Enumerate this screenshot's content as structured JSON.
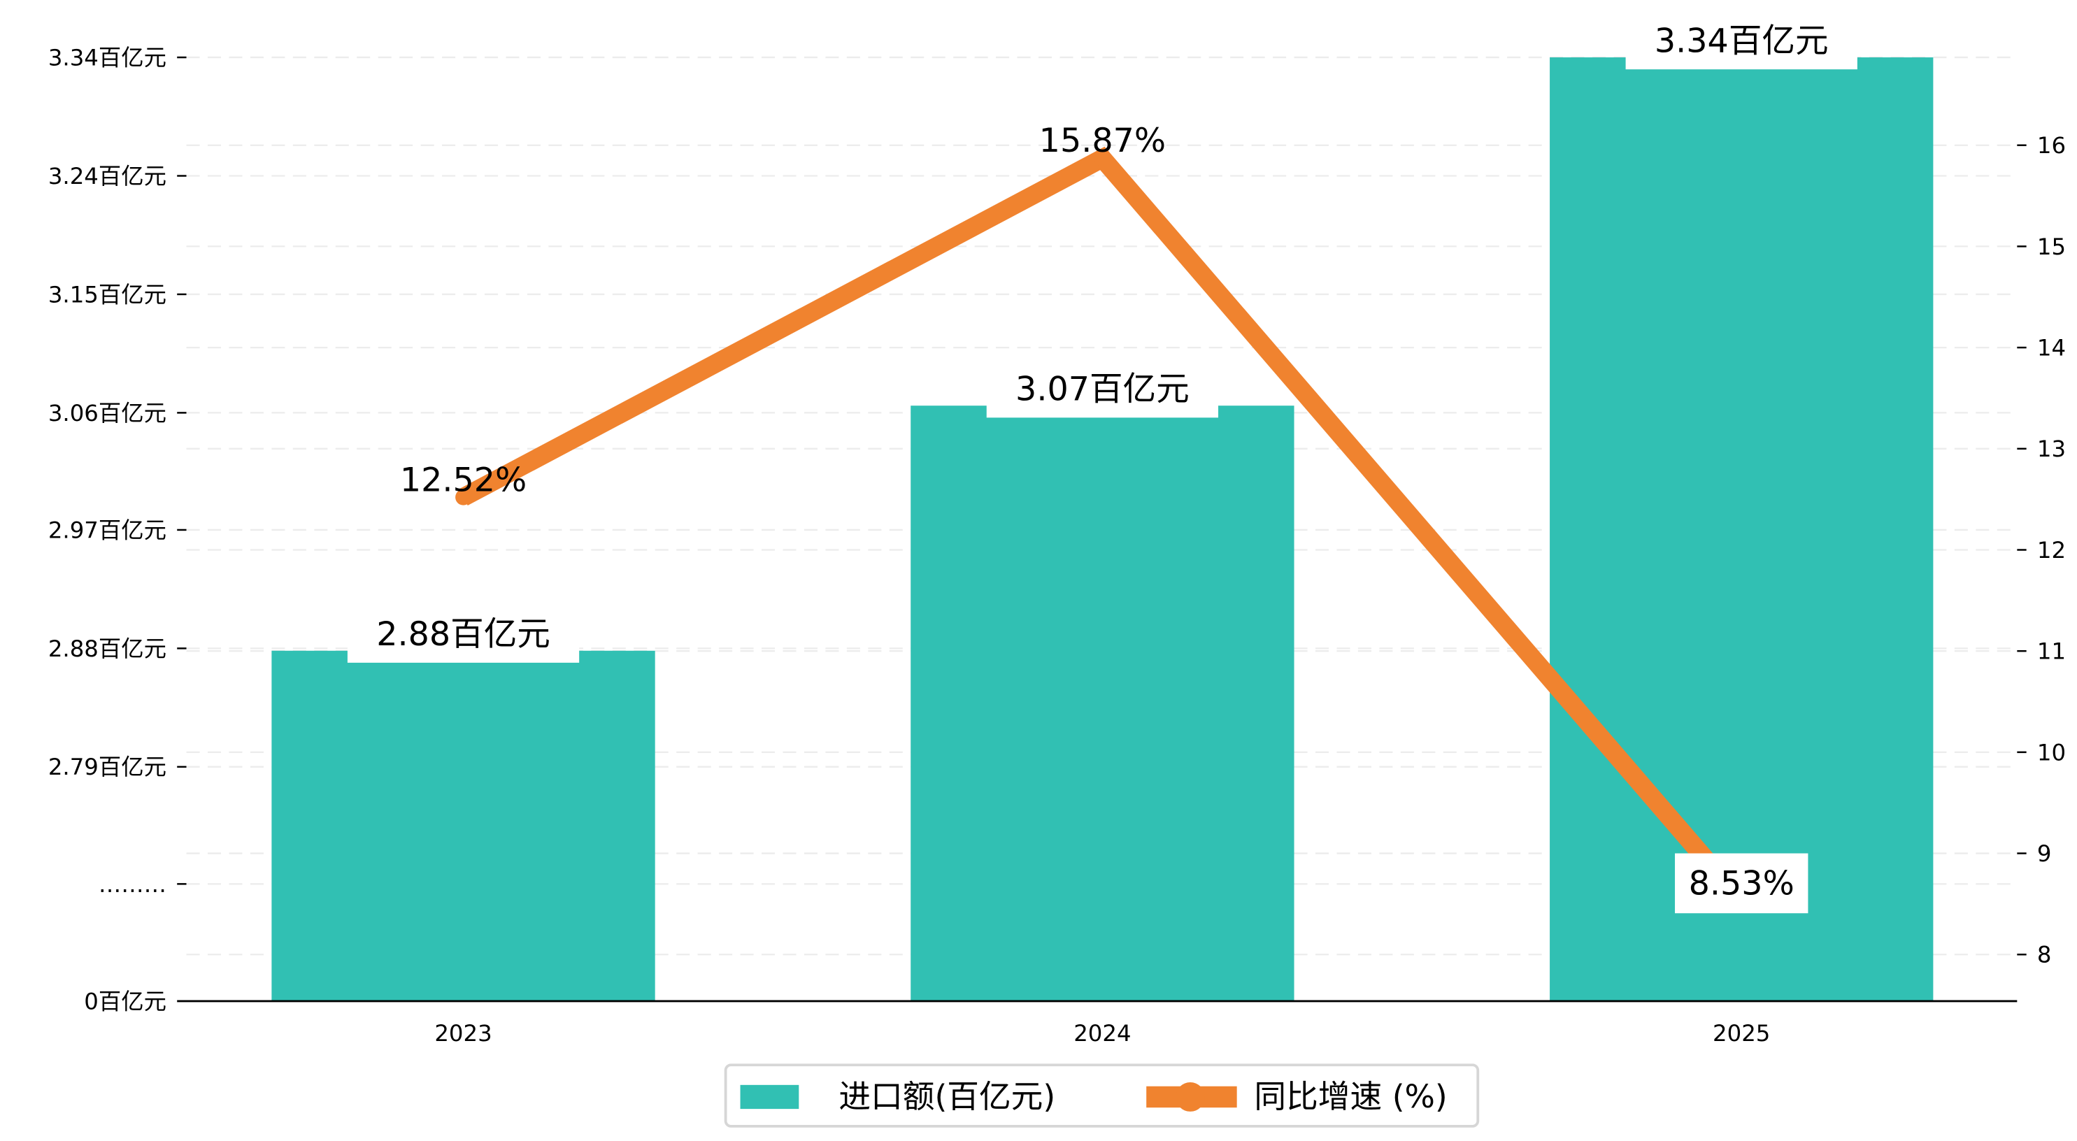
{
  "chart_data": {
    "type": "bar+line",
    "categories": [
      "2023",
      "2024",
      "2025"
    ],
    "series": [
      {
        "name": "进口额(百亿元)",
        "type": "bar",
        "axis": "left",
        "values": [
          2.88,
          3.07,
          3.34
        ],
        "labels": [
          "2.88百亿元",
          "3.07百亿元",
          "3.34百亿元"
        ],
        "color": "#31c0b3"
      },
      {
        "name": "同比增速 (%)",
        "type": "line",
        "axis": "right",
        "values": [
          12.52,
          15.87,
          8.53
        ],
        "labels": [
          "12.52%",
          "15.87%",
          "8.53%"
        ],
        "color": "#f0832f"
      }
    ],
    "left_axis": {
      "ticks": [
        {
          "value": 3.34,
          "label": "3.34百亿元"
        },
        {
          "value": 3.24,
          "label": "3.24百亿元"
        },
        {
          "value": 3.15,
          "label": "3.15百亿元"
        },
        {
          "value": 3.06,
          "label": "3.06百亿元"
        },
        {
          "value": 2.97,
          "label": "2.97百亿元"
        },
        {
          "value": 2.88,
          "label": "2.88百亿元"
        },
        {
          "value": 2.79,
          "label": "2.79百亿元"
        },
        {
          "value": null,
          "label": "………"
        },
        {
          "value": 0,
          "label": "0百亿元"
        }
      ],
      "broken": true
    },
    "right_axis": {
      "ticks": [
        "16",
        "15",
        "14",
        "13",
        "12",
        "11",
        "10",
        "9",
        "8"
      ],
      "range": [
        7.5,
        16.9
      ]
    },
    "grid": true,
    "legend": {
      "placement": "bottom-center",
      "items": [
        "进口额(百亿元)",
        "同比增速 (%)"
      ]
    }
  }
}
